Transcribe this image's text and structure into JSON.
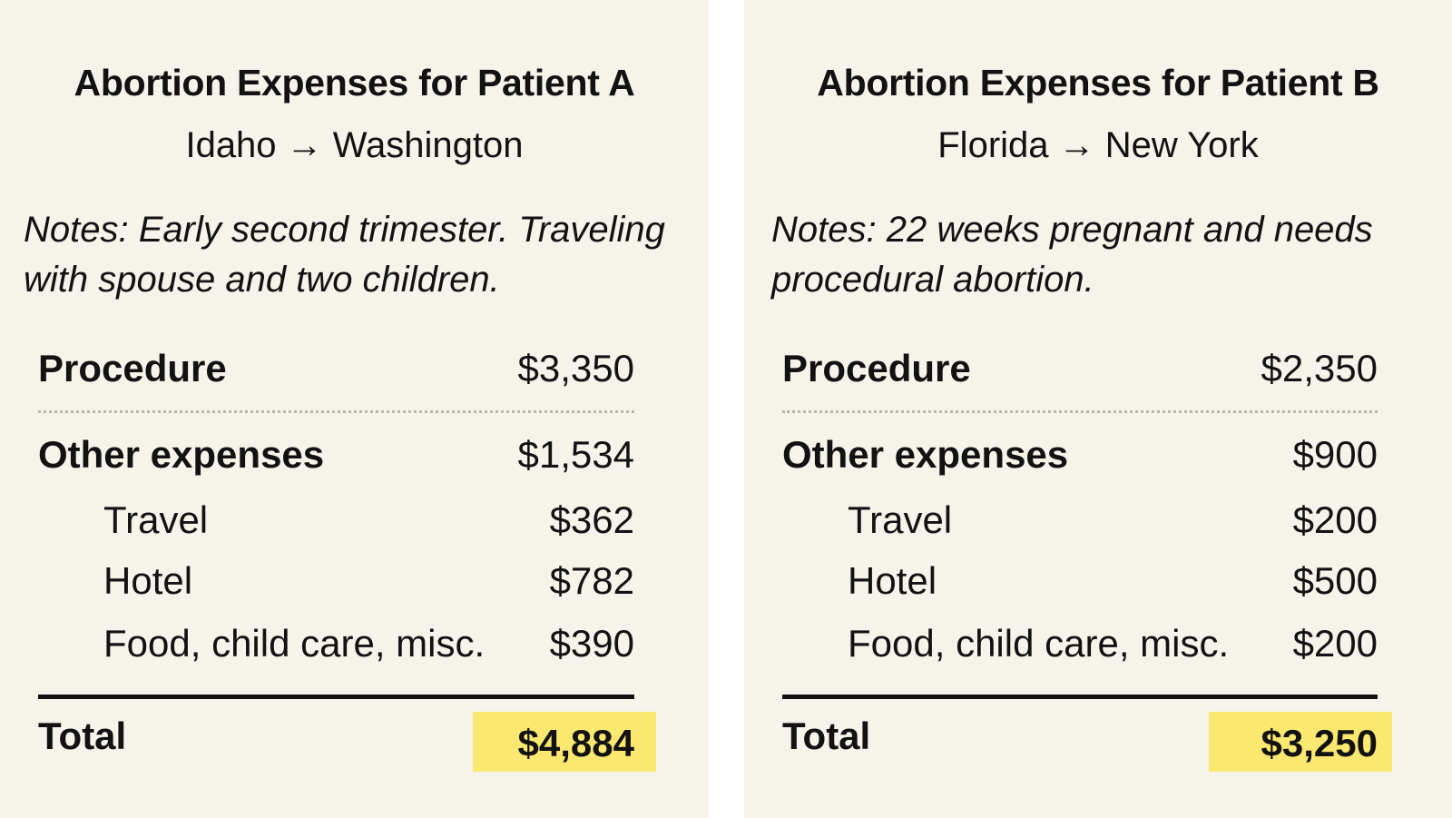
{
  "patients": [
    {
      "title": "Abortion Expenses for Patient A",
      "route": "Idaho → Washington",
      "notes": "Notes: Early second trimester. Traveling with spouse and two children.",
      "procedure": {
        "label": "Procedure",
        "value": "$3,350"
      },
      "other": {
        "label": "Other expenses",
        "value": "$1,534"
      },
      "travel": {
        "label": "Travel",
        "value": "$362"
      },
      "hotel": {
        "label": "Hotel",
        "value": "$782"
      },
      "food": {
        "label": "Food, child care, misc.",
        "value": "$390"
      },
      "total": {
        "label": "Total",
        "value": "$4,884"
      }
    },
    {
      "title": "Abortion Expenses for Patient B",
      "route": "Florida → New York",
      "notes": "Notes: 22 weeks pregnant and needs procedural abortion.",
      "procedure": {
        "label": "Procedure",
        "value": "$2,350"
      },
      "other": {
        "label": "Other expenses",
        "value": "$900"
      },
      "travel": {
        "label": "Travel",
        "value": "$200"
      },
      "hotel": {
        "label": "Hotel",
        "value": "$500"
      },
      "food": {
        "label": "Food, child care, misc.",
        "value": "$200"
      },
      "total": {
        "label": "Total",
        "value": "$3,250"
      }
    }
  ],
  "colors": {
    "panel_background": "#f6f3ea",
    "total_highlight": "#fbe870",
    "text": "#121212"
  }
}
